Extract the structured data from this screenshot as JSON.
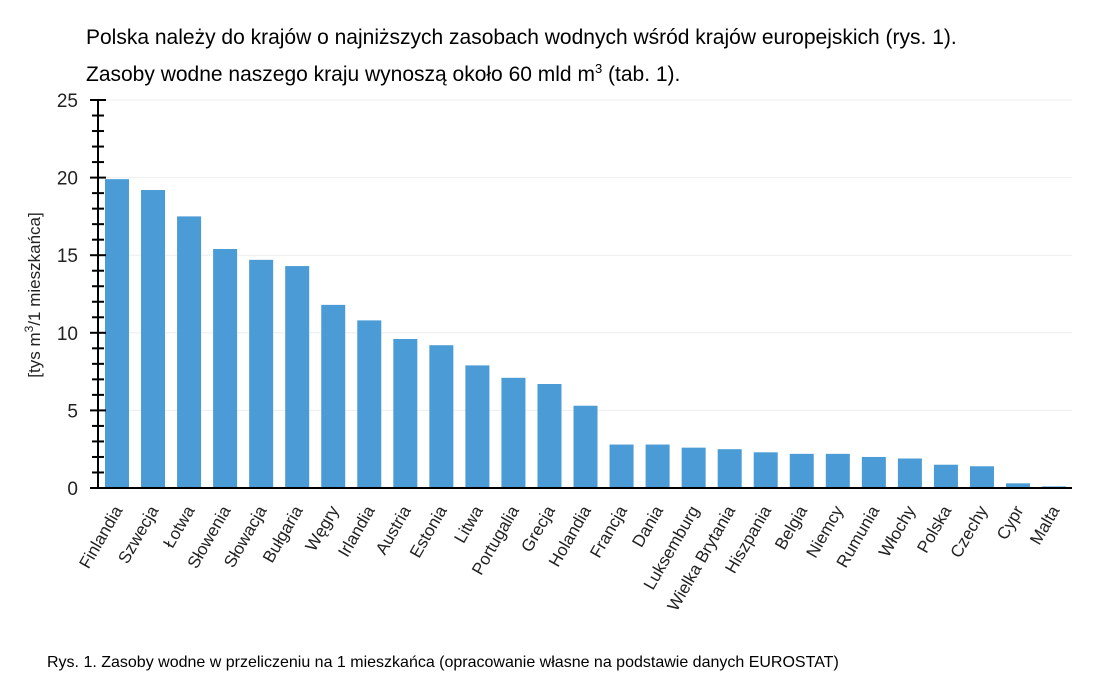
{
  "intro": {
    "line1": "Polska należy do krajów o najniższych zasobach wodnych wśród krajów europejskich (rys. 1).",
    "line2_pre": "Zasoby wodne naszego kraju wynoszą około 60 mld m",
    "line2_sup": "3",
    "line2_post": " (tab. 1)."
  },
  "caption": "Rys. 1. Zasoby wodne w przeliczeniu na 1 mieszkańca (opracowanie własne na podstawie danych EUROSTAT)",
  "chart_data": {
    "type": "bar",
    "title": "",
    "xlabel": "",
    "ylabel_pre": "[tys m",
    "ylabel_sup": "3",
    "ylabel_post": "/1 mieszkańca]",
    "ylim": [
      0,
      25
    ],
    "yticks": [
      0,
      5,
      10,
      15,
      20,
      25
    ],
    "grid": true,
    "bar_color": "#4a9bd6",
    "categories": [
      "Finlandia",
      "Szwecja",
      "Łotwa",
      "Słowenia",
      "Słowacja",
      "Bułgaria",
      "Węgry",
      "Irlandia",
      "Austria",
      "Estonia",
      "Litwa",
      "Portugalia",
      "Grecja",
      "Holandia",
      "Francja",
      "Dania",
      "Luksemburg",
      "Wielka Brytania",
      "Hiszpania",
      "Belgia",
      "Niemcy",
      "Rumunia",
      "Włochy",
      "Polska",
      "Czechy",
      "Cypr",
      "Malta"
    ],
    "values": [
      19.9,
      19.2,
      17.5,
      15.4,
      14.7,
      14.3,
      11.8,
      10.8,
      9.6,
      9.2,
      7.9,
      7.1,
      6.7,
      5.3,
      2.8,
      2.8,
      2.6,
      2.5,
      2.3,
      2.2,
      2.2,
      2.0,
      1.9,
      1.5,
      1.4,
      0.3,
      0.1
    ]
  }
}
